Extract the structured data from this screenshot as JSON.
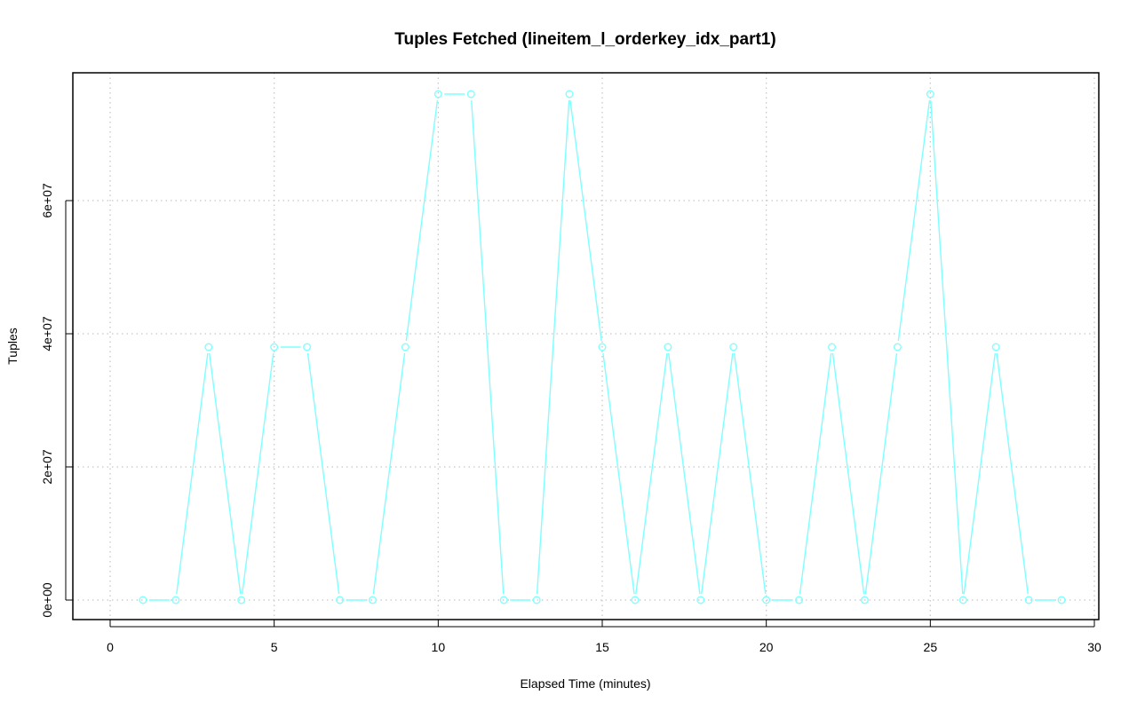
{
  "chart_data": {
    "type": "line",
    "title": "Tuples Fetched (lineitem_l_orderkey_idx_part1)",
    "xlabel": "Elapsed Time (minutes)",
    "ylabel": "Tuples",
    "xlim": [
      0,
      30
    ],
    "ylim": [
      0,
      76000000
    ],
    "x_ticks": [
      0,
      5,
      10,
      15,
      20,
      25,
      30
    ],
    "x_tick_labels": [
      "0",
      "5",
      "10",
      "15",
      "20",
      "25",
      "30"
    ],
    "y_ticks": [
      0,
      20000000,
      40000000,
      60000000
    ],
    "y_tick_labels": [
      "0e+00",
      "2e+07",
      "4e+07",
      "6e+07"
    ],
    "grid": true,
    "series": [
      {
        "color": "#7fffff",
        "marker": "open-circle",
        "x": [
          1,
          2,
          3,
          4,
          5,
          6,
          7,
          8,
          9,
          10,
          11,
          12,
          13,
          14,
          15,
          16,
          17,
          18,
          19,
          20,
          21,
          22,
          23,
          24,
          25,
          26,
          27,
          28,
          29
        ],
        "y": [
          0,
          0,
          38000000,
          0,
          38000000,
          38000000,
          0,
          0,
          38000000,
          76000000,
          76000000,
          0,
          0,
          76000000,
          38000000,
          0,
          38000000,
          0,
          38000000,
          0,
          0,
          38000000,
          0,
          38000000,
          76000000,
          0,
          38000000,
          0,
          0
        ]
      }
    ]
  }
}
